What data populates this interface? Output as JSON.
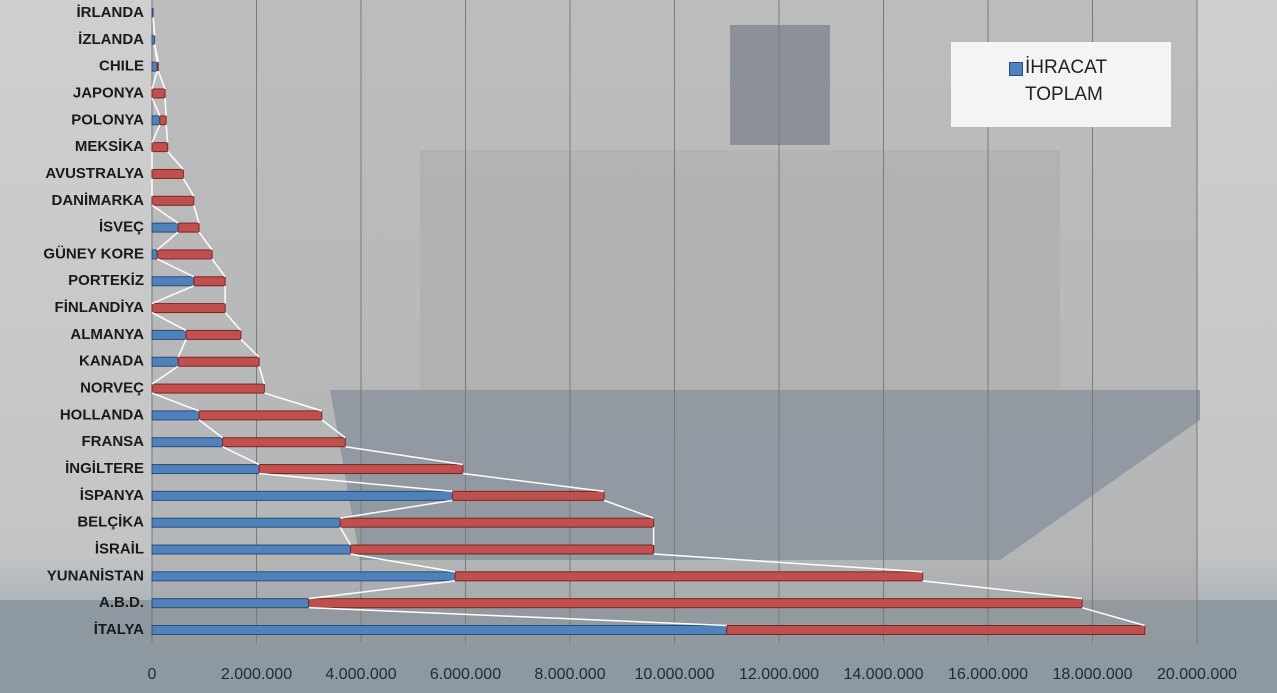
{
  "chart_data": {
    "type": "stacked-bar-horizontal",
    "categories": [
      "İTALYA",
      "A.B.D.",
      "YUNANİSTAN",
      "İSRAİL",
      "BELÇİKA",
      "İSPANYA",
      "İNGİLTERE",
      "FRANSA",
      "HOLLANDA",
      "NORVEÇ",
      "KANADA",
      "ALMANYA",
      "FİNLANDİYA",
      "PORTEKİZ",
      "GÜNEY KORE",
      "İSVEÇ",
      "DANİMARKA",
      "AVUSTRALYA",
      "MEKSİKA",
      "POLONYA",
      "JAPONYA",
      "CHILE",
      "İZLANDA",
      "İRLANDA"
    ],
    "series": [
      {
        "name": "İHRACAT TOPLAM",
        "color": "#4f81bd",
        "values": [
          11000000,
          3000000,
          5800000,
          3800000,
          3600000,
          5750000,
          2050000,
          1350000,
          900000,
          0,
          500000,
          650000,
          0,
          800000,
          100000,
          500000,
          0,
          0,
          0,
          150000,
          0,
          100000,
          50000,
          20000
        ]
      },
      {
        "color": "#c0504d",
        "values": [
          8000000,
          14800000,
          8950000,
          5800000,
          6000000,
          2900000,
          3900000,
          2350000,
          2350000,
          2150000,
          1550000,
          1050000,
          1400000,
          600000,
          1050000,
          400000,
          800000,
          600000,
          300000,
          120000,
          250000,
          20000,
          0,
          0
        ]
      }
    ],
    "xlim": [
      0,
      20000000
    ],
    "xticks": [
      0,
      {
        "value": 2000000,
        "label": "2.000.000"
      },
      {
        "value": 4000000,
        "label": "4.000.000"
      },
      {
        "value": 6000000,
        "label": "6.000.000"
      },
      {
        "value": 8000000,
        "label": "8.000.000"
      },
      {
        "value": 10000000,
        "label": "10.000.000"
      },
      {
        "value": 12000000,
        "label": "12.000.000"
      },
      {
        "value": 14000000,
        "label": "14.000.000"
      },
      {
        "value": 16000000,
        "label": "16.000.000"
      },
      {
        "value": 18000000,
        "label": "18.000.000"
      },
      {
        "value": 20000000,
        "label": "20.000.000"
      }
    ],
    "grid": true,
    "series_lines": true,
    "legend": "top-right"
  }
}
